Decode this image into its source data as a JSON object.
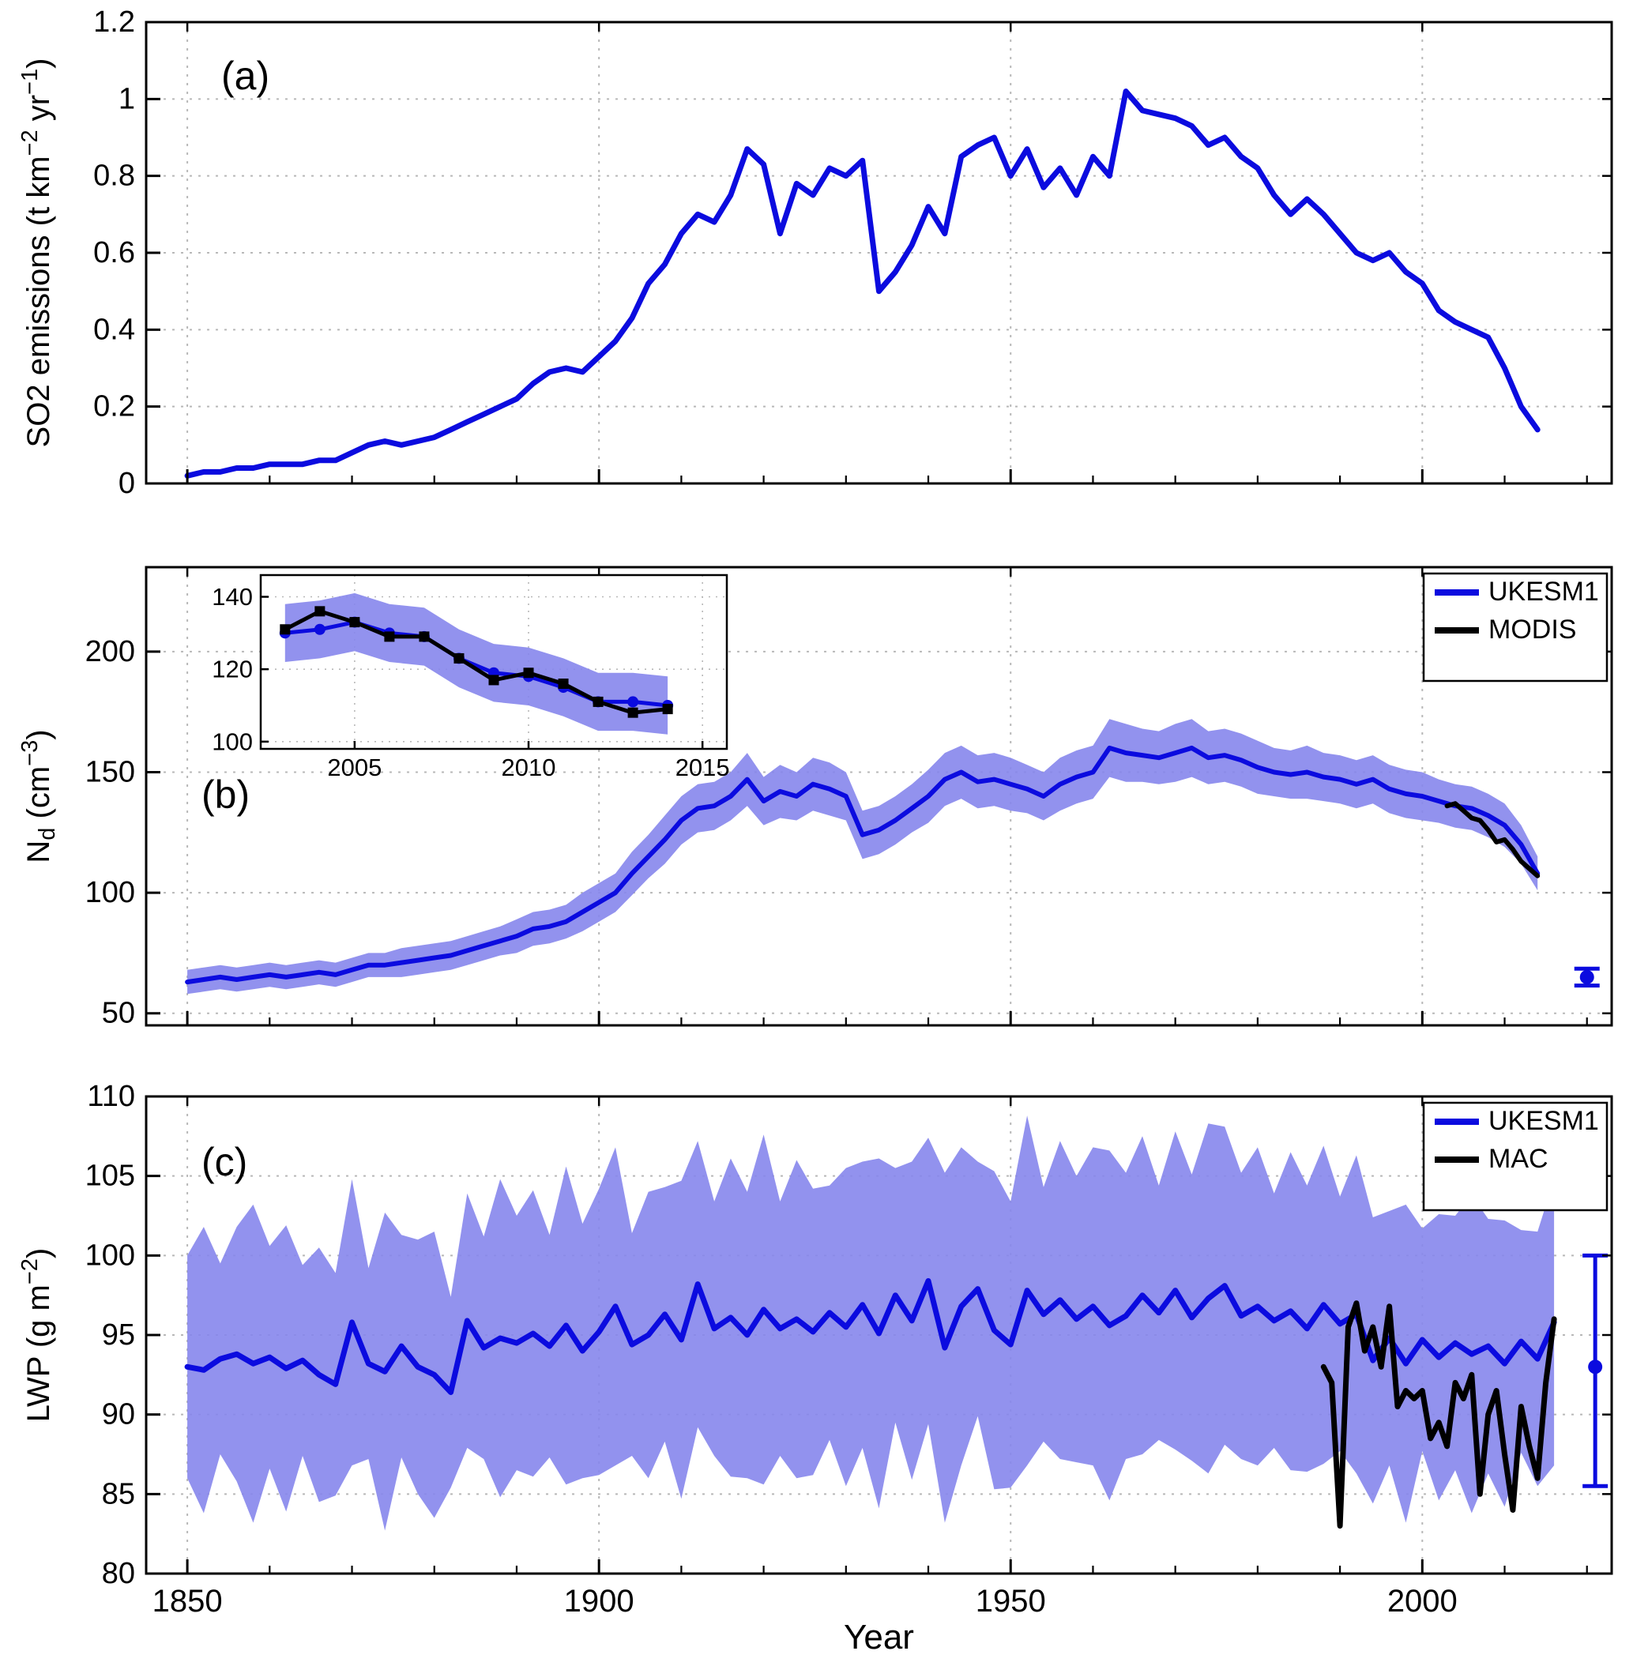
{
  "figure": {
    "xlabel": "Year",
    "xlim": [
      1845,
      2023
    ],
    "x_ticks": [
      1850,
      1900,
      1950,
      2000
    ],
    "x_minor_step": 10,
    "colors": {
      "blue": "#0b0bdf",
      "black": "#000000",
      "band": "#8686ec",
      "grid": "#b8b8b8"
    }
  },
  "chart_data": [
    {
      "id": "a",
      "type": "line",
      "panel_label": "(a)",
      "ylabel_parts": [
        {
          "t": "SO2 emissions (t km"
        },
        {
          "t": "−2",
          "sup": true
        },
        {
          "t": " yr"
        },
        {
          "t": "−1",
          "sup": true
        },
        {
          "t": ")"
        }
      ],
      "ylim": [
        0,
        1.2
      ],
      "yticks": [
        0,
        0.2,
        0.4,
        0.6,
        0.8,
        1,
        1.2
      ],
      "ytick_labels": [
        "0",
        "0.2",
        "0.4",
        "0.6",
        "0.8",
        "1",
        "1.2"
      ],
      "series": [
        {
          "name": "SO2 emissions",
          "color": "blue",
          "width": 7,
          "x_start": 1850,
          "x_step": 2,
          "y": [
            0.02,
            0.03,
            0.03,
            0.04,
            0.04,
            0.05,
            0.05,
            0.05,
            0.06,
            0.06,
            0.08,
            0.1,
            0.11,
            0.1,
            0.11,
            0.12,
            0.14,
            0.16,
            0.18,
            0.2,
            0.22,
            0.26,
            0.29,
            0.3,
            0.29,
            0.33,
            0.37,
            0.43,
            0.52,
            0.57,
            0.65,
            0.7,
            0.68,
            0.75,
            0.87,
            0.83,
            0.65,
            0.78,
            0.75,
            0.82,
            0.8,
            0.84,
            0.5,
            0.55,
            0.62,
            0.72,
            0.65,
            0.85,
            0.88,
            0.9,
            0.8,
            0.87,
            0.77,
            0.82,
            0.75,
            0.85,
            0.8,
            1.02,
            0.97,
            0.96,
            0.95,
            0.93,
            0.88,
            0.9,
            0.85,
            0.82,
            0.75,
            0.7,
            0.74,
            0.7,
            0.65,
            0.6,
            0.58,
            0.6,
            0.55,
            0.52,
            0.45,
            0.42,
            0.4,
            0.38,
            0.3,
            0.2,
            0.14
          ]
        }
      ]
    },
    {
      "id": "b",
      "type": "line",
      "panel_label": "(b)",
      "ylabel_parts": [
        {
          "t": "N"
        },
        {
          "t": "d",
          "sub": true
        },
        {
          "t": " (cm"
        },
        {
          "t": "−3",
          "sup": true
        },
        {
          "t": ")"
        }
      ],
      "ylim": [
        45,
        235
      ],
      "yticks": [
        50,
        100,
        150,
        200
      ],
      "ytick_labels": [
        "50",
        "100",
        "150",
        "200"
      ],
      "series": [
        {
          "name": "UKESM1",
          "color": "blue",
          "width": 6,
          "x_start": 1850,
          "x_step": 2,
          "y": [
            63,
            64,
            65,
            64,
            65,
            66,
            65,
            66,
            67,
            66,
            68,
            70,
            70,
            71,
            72,
            73,
            74,
            76,
            78,
            80,
            82,
            85,
            86,
            88,
            92,
            96,
            100,
            108,
            115,
            122,
            130,
            135,
            136,
            140,
            147,
            138,
            142,
            140,
            145,
            143,
            140,
            124,
            126,
            130,
            135,
            140,
            147,
            150,
            146,
            147,
            145,
            143,
            140,
            145,
            148,
            150,
            160,
            158,
            157,
            156,
            158,
            160,
            156,
            157,
            155,
            152,
            150,
            149,
            150,
            148,
            147,
            145,
            147,
            143,
            141,
            140,
            138,
            136,
            135,
            132,
            128,
            120,
            108
          ],
          "band_half": [
            5,
            5,
            5,
            5,
            5,
            5,
            5,
            5,
            5,
            5,
            5,
            5,
            5,
            6,
            6,
            6,
            6,
            6,
            6,
            6,
            7,
            7,
            7,
            7,
            8,
            8,
            8,
            9,
            9,
            10,
            10,
            10,
            10,
            10,
            11,
            10,
            11,
            10,
            11,
            11,
            10,
            10,
            10,
            10,
            10,
            11,
            11,
            11,
            11,
            11,
            11,
            10,
            10,
            11,
            11,
            11,
            12,
            12,
            11,
            11,
            12,
            12,
            11,
            11,
            11,
            11,
            10,
            10,
            11,
            10,
            10,
            10,
            10,
            10,
            10,
            10,
            9,
            9,
            9,
            9,
            9,
            8,
            7
          ]
        },
        {
          "name": "MODIS",
          "color": "black",
          "width": 6,
          "x_start": 2003,
          "x_step": 1,
          "y": [
            136,
            137,
            134,
            131,
            130,
            126,
            121,
            122,
            118,
            113,
            110,
            107
          ]
        }
      ],
      "legend": [
        {
          "label": "UKESM1",
          "color": "blue"
        },
        {
          "label": "MODIS",
          "color": "black"
        }
      ],
      "obs_point": {
        "x": 2020,
        "y": 65,
        "lo": 61.5,
        "hi": 68.5
      },
      "inset": {
        "xlim": [
          2002.3,
          2015.7
        ],
        "ylim": [
          98,
          146
        ],
        "xticks": [
          2005,
          2010,
          2015
        ],
        "xtick_labels": [
          "2005",
          "2010",
          "2015"
        ],
        "yticks": [
          100,
          120,
          140
        ],
        "ytick_labels": [
          "100",
          "120",
          "140"
        ],
        "series": [
          {
            "name": "UKESM1",
            "color": "blue",
            "marker": "circle",
            "width": 5,
            "band_half_const": 8,
            "x_start": 2003,
            "x_step": 1,
            "y": [
              130,
              131,
              133,
              130,
              129,
              123,
              119,
              118,
              115,
              111,
              111,
              110
            ]
          },
          {
            "name": "MODIS",
            "color": "black",
            "marker": "square",
            "width": 5,
            "x_start": 2003,
            "x_step": 1,
            "y": [
              131,
              136,
              133,
              129,
              129,
              123,
              117,
              119,
              116,
              111,
              108,
              109
            ]
          }
        ]
      }
    },
    {
      "id": "c",
      "type": "line",
      "panel_label": "(c)",
      "ylabel_parts": [
        {
          "t": "LWP (g m"
        },
        {
          "t": "−2",
          "sup": true
        },
        {
          "t": ")"
        }
      ],
      "ylim": [
        80,
        110
      ],
      "yticks": [
        80,
        85,
        90,
        95,
        100,
        105,
        110
      ],
      "ytick_labels": [
        "80",
        "85",
        "90",
        "95",
        "100",
        "105",
        "110"
      ],
      "series": [
        {
          "name": "UKESM1",
          "color": "blue",
          "width": 7,
          "x_start": 1850,
          "x_step": 2,
          "y": [
            93.0,
            92.8,
            93.5,
            93.8,
            93.2,
            93.6,
            92.9,
            93.4,
            92.5,
            91.9,
            95.8,
            93.2,
            92.7,
            94.3,
            93.0,
            92.5,
            91.4,
            95.9,
            94.2,
            94.8,
            94.5,
            95.1,
            94.3,
            95.6,
            94.0,
            95.2,
            96.8,
            94.4,
            95.0,
            96.3,
            94.7,
            98.2,
            95.4,
            96.1,
            95.0,
            96.6,
            95.4,
            96.0,
            95.2,
            96.4,
            95.5,
            96.9,
            95.1,
            97.5,
            95.9,
            98.4,
            94.2,
            96.8,
            97.9,
            95.3,
            94.4,
            97.8,
            96.3,
            97.2,
            96.0,
            96.8,
            95.6,
            96.2,
            97.5,
            96.4,
            97.8,
            96.1,
            97.3,
            98.1,
            96.2,
            96.8,
            95.9,
            96.5,
            95.4,
            96.9,
            95.7,
            96.3,
            93.4,
            94.8,
            93.2,
            94.7,
            93.6,
            94.5,
            93.8,
            94.3,
            93.2,
            94.6,
            93.5,
            95.8
          ],
          "band_half": [
            7,
            9,
            6,
            8,
            10,
            7,
            9,
            6,
            8,
            7,
            9,
            6,
            10,
            7,
            8,
            9,
            6,
            8,
            7,
            10,
            8,
            9,
            7,
            10,
            8,
            9,
            10,
            7,
            9,
            8,
            10,
            9,
            8,
            10,
            9,
            11,
            8,
            10,
            9,
            8,
            10,
            9,
            11,
            8,
            10,
            9,
            11,
            10,
            8,
            10,
            9,
            11,
            8,
            10,
            9,
            10,
            11,
            9,
            10,
            8,
            10,
            9,
            11,
            10,
            9,
            10,
            8,
            10,
            9,
            10,
            8,
            10,
            9,
            8,
            10,
            7,
            9,
            8,
            10,
            8,
            9,
            7,
            8,
            9
          ]
        },
        {
          "name": "MAC",
          "color": "black",
          "width": 7,
          "x_start": 1988,
          "x_step": 1,
          "y": [
            93.0,
            92.0,
            83.0,
            95.5,
            97.0,
            94.0,
            95.5,
            93.0,
            96.8,
            90.5,
            91.5,
            91.0,
            91.5,
            88.5,
            89.5,
            88.0,
            92.0,
            91.0,
            92.5,
            85.0,
            90.0,
            91.5,
            87.5,
            84.0,
            90.5,
            88.0,
            86.0,
            92.0,
            96.0
          ]
        }
      ],
      "legend": [
        {
          "label": "UKESM1",
          "color": "blue"
        },
        {
          "label": "MAC",
          "color": "black"
        }
      ],
      "obs_point": {
        "x": 2021,
        "y": 93,
        "lo": 85.5,
        "hi": 100
      }
    }
  ]
}
